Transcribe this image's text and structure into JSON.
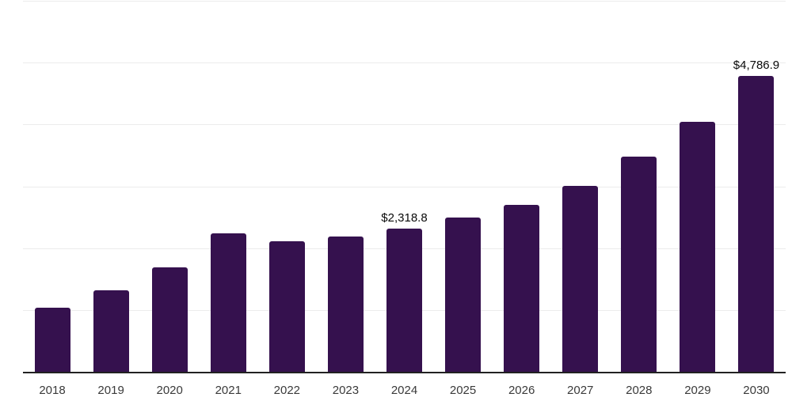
{
  "chart": {
    "background_color": "#ffffff",
    "bar_color": "#35114e",
    "grid_color": "#ececec",
    "axis_color": "#222222",
    "tick_label_color": "#3a3a3a",
    "value_label_color": "#0a0a0a"
  },
  "chart_data": {
    "type": "bar",
    "title": "",
    "xlabel": "",
    "ylabel": "",
    "categories": [
      "2018",
      "2019",
      "2020",
      "2021",
      "2022",
      "2023",
      "2024",
      "2025",
      "2026",
      "2027",
      "2028",
      "2029",
      "2030"
    ],
    "values": [
      1040,
      1315,
      1685,
      2235,
      2115,
      2185,
      2318.8,
      2500,
      2700,
      3005,
      3480,
      4045,
      4786.9
    ],
    "value_labels": [
      "",
      "",
      "",
      "",
      "",
      "",
      "$2,318.8",
      "",
      "",
      "",
      "",
      "",
      "$4,786.9"
    ],
    "ylim": [
      0,
      6000
    ],
    "gridline_interval": 1000,
    "grid": "horizontal",
    "legend_position": "none"
  }
}
